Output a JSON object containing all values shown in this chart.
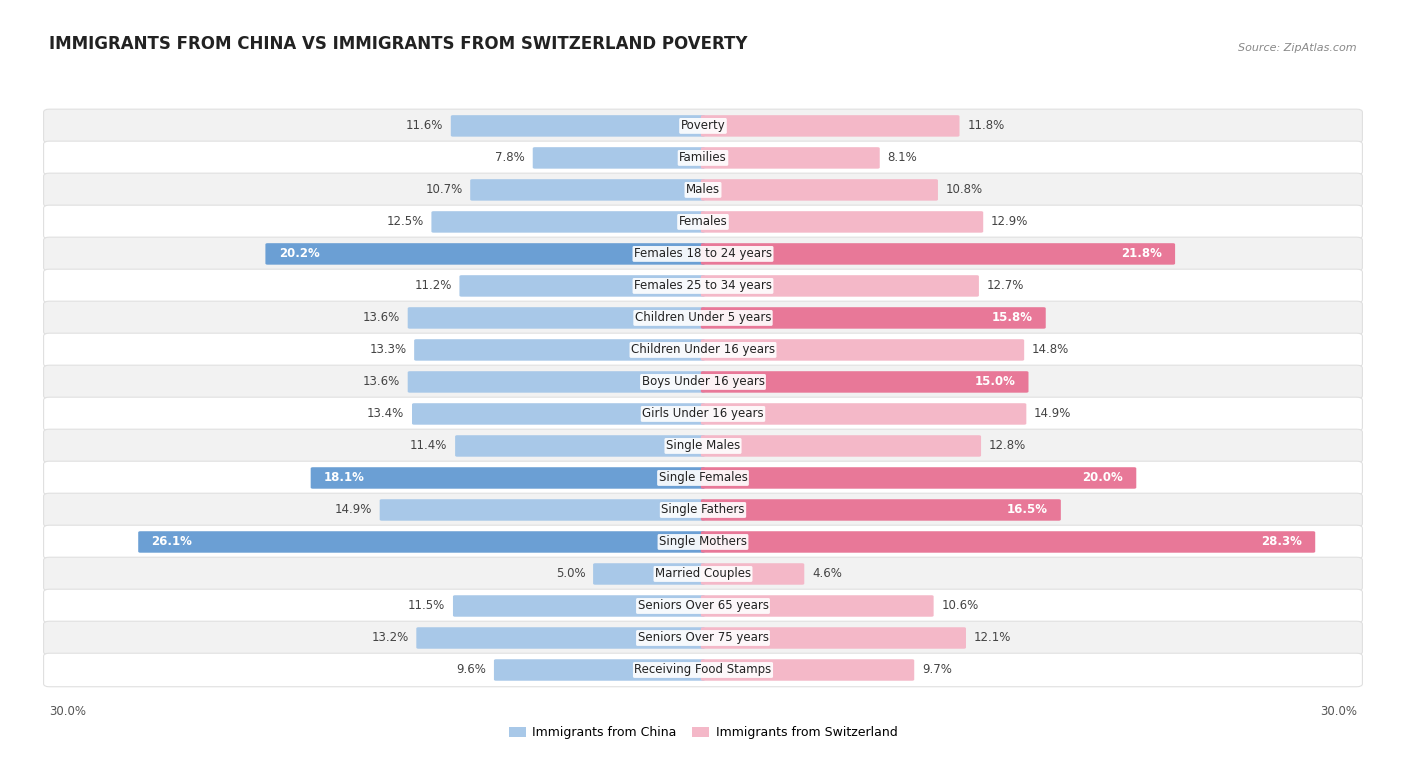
{
  "title": "IMMIGRANTS FROM CHINA VS IMMIGRANTS FROM SWITZERLAND POVERTY",
  "source": "Source: ZipAtlas.com",
  "categories": [
    "Poverty",
    "Families",
    "Males",
    "Females",
    "Females 18 to 24 years",
    "Females 25 to 34 years",
    "Children Under 5 years",
    "Children Under 16 years",
    "Boys Under 16 years",
    "Girls Under 16 years",
    "Single Males",
    "Single Females",
    "Single Fathers",
    "Single Mothers",
    "Married Couples",
    "Seniors Over 65 years",
    "Seniors Over 75 years",
    "Receiving Food Stamps"
  ],
  "china_values": [
    11.6,
    7.8,
    10.7,
    12.5,
    20.2,
    11.2,
    13.6,
    13.3,
    13.6,
    13.4,
    11.4,
    18.1,
    14.9,
    26.1,
    5.0,
    11.5,
    13.2,
    9.6
  ],
  "switzerland_values": [
    11.8,
    8.1,
    10.8,
    12.9,
    21.8,
    12.7,
    15.8,
    14.8,
    15.0,
    14.9,
    12.8,
    20.0,
    16.5,
    28.3,
    4.6,
    10.6,
    12.1,
    9.7
  ],
  "china_color_normal": "#a8c8e8",
  "china_color_highlight": "#6b9fd4",
  "switzerland_color_normal": "#f4b8c8",
  "switzerland_color_highlight": "#e87898",
  "highlight_thresh": 15.0,
  "max_value": 30.0,
  "title_fontsize": 12,
  "source_fontsize": 8,
  "bar_fontsize": 8.5,
  "cat_fontsize": 8.5,
  "legend_label_china": "Immigrants from China",
  "legend_label_switzerland": "Immigrants from Switzerland",
  "row_colors": [
    "#f2f2f2",
    "#ffffff"
  ],
  "row_edge_color": "#e0e0e0"
}
